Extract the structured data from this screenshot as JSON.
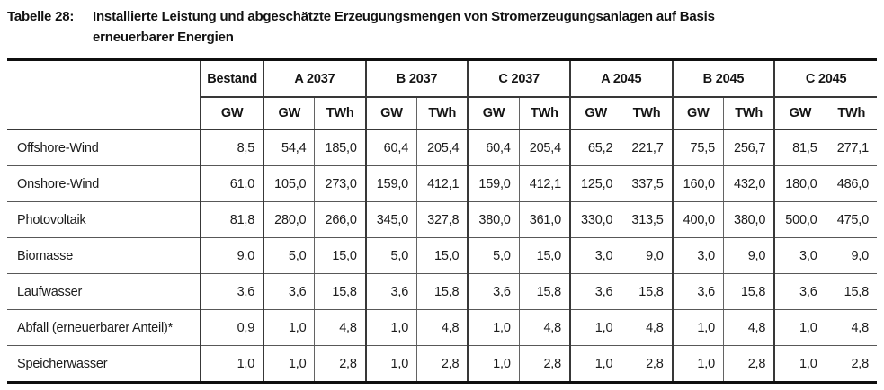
{
  "title": {
    "prefix": "Tabelle 28:",
    "line1": "Installierte Leistung und abgeschätzte Erzeugungsmengen von Stromerzeugungsanlagen auf Basis",
    "line2": "erneuerbarer Energien"
  },
  "table": {
    "header": {
      "row1": [
        "Bestand",
        "A 2037",
        "B 2037",
        "C 2037",
        "A 2045",
        "B 2045",
        "C 2045"
      ],
      "row2": [
        "GW",
        "GW",
        "TWh",
        "GW",
        "TWh",
        "GW",
        "TWh",
        "GW",
        "TWh",
        "GW",
        "TWh",
        "GW",
        "TWh"
      ]
    },
    "rows": [
      {
        "label": "Offshore-Wind",
        "values": [
          "8,5",
          "54,4",
          "185,0",
          "60,4",
          "205,4",
          "60,4",
          "205,4",
          "65,2",
          "221,7",
          "75,5",
          "256,7",
          "81,5",
          "277,1"
        ]
      },
      {
        "label": "Onshore-Wind",
        "values": [
          "61,0",
          "105,0",
          "273,0",
          "159,0",
          "412,1",
          "159,0",
          "412,1",
          "125,0",
          "337,5",
          "160,0",
          "432,0",
          "180,0",
          "486,0"
        ]
      },
      {
        "label": "Photovoltaik",
        "values": [
          "81,8",
          "280,0",
          "266,0",
          "345,0",
          "327,8",
          "380,0",
          "361,0",
          "330,0",
          "313,5",
          "400,0",
          "380,0",
          "500,0",
          "475,0"
        ]
      },
      {
        "label": "Biomasse",
        "values": [
          "9,0",
          "5,0",
          "15,0",
          "5,0",
          "15,0",
          "5,0",
          "15,0",
          "3,0",
          "9,0",
          "3,0",
          "9,0",
          "3,0",
          "9,0"
        ]
      },
      {
        "label": "Laufwasser",
        "values": [
          "3,6",
          "3,6",
          "15,8",
          "3,6",
          "15,8",
          "3,6",
          "15,8",
          "3,6",
          "15,8",
          "3,6",
          "15,8",
          "3,6",
          "15,8"
        ]
      },
      {
        "label": "Abfall (erneuerbarer Anteil)*",
        "values": [
          "0,9",
          "1,0",
          "4,8",
          "1,0",
          "4,8",
          "1,0",
          "4,8",
          "1,0",
          "4,8",
          "1,0",
          "4,8",
          "1,0",
          "4,8"
        ]
      },
      {
        "label": "Speicherwasser",
        "values": [
          "1,0",
          "1,0",
          "2,8",
          "1,0",
          "2,8",
          "1,0",
          "2,8",
          "1,0",
          "2,8",
          "1,0",
          "2,8",
          "1,0",
          "2,8"
        ]
      }
    ]
  }
}
